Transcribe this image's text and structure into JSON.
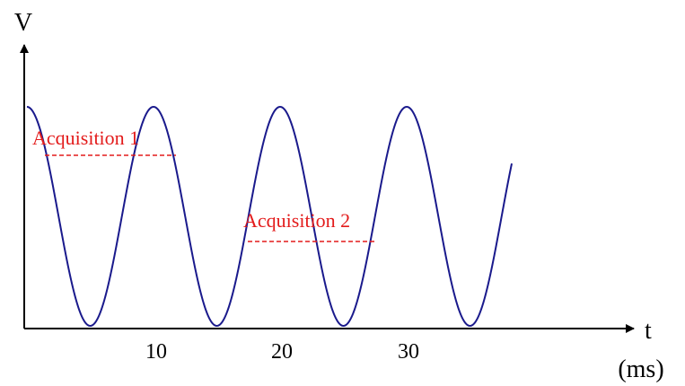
{
  "axes": {
    "y_label": "V",
    "x_label": "t",
    "x_unit": "(ms)",
    "x_ticks": [
      "10",
      "20",
      "30"
    ]
  },
  "waveform": {
    "period_ms": 10,
    "start_ms": 0,
    "end_ms": 38.3,
    "starts_at": "peak"
  },
  "acquisitions": [
    {
      "label": "Acquisition 1"
    },
    {
      "label": "Acquisition 2"
    }
  ],
  "colors": {
    "waveform": "#1a1a8c",
    "acquisition": "#e31b1b",
    "axes": "#000000"
  }
}
